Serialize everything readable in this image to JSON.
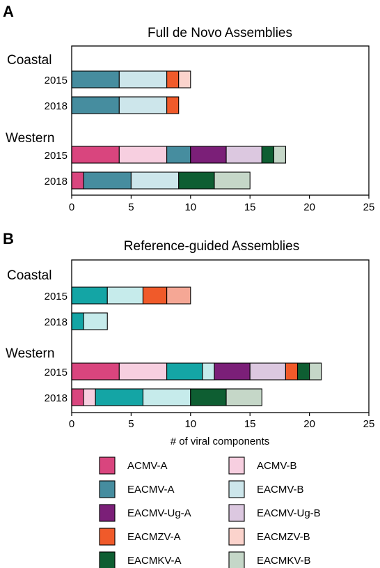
{
  "colors": {
    "ACMV-A": "#d9457e",
    "ACMV-B": "#f7cfe0",
    "EACMV-A": "#468d9f",
    "EACMV-B": "#cde6eb",
    "EACMV-Ug-A": "#7b1f78",
    "EACMV-Ug-B": "#dcc8e0",
    "EACMZV-A": "#f05a2a",
    "EACMZV-B": "#fbd3cc",
    "EACMKV-A": "#0e5e32",
    "EACMKV-B": "#c5d7c8",
    "ref-teal": "#14a5a5",
    "ref-lightcyan": "#c6ebeb",
    "ref-salmon": "#f5a795"
  },
  "legend": [
    [
      "ACMV-A",
      "ACMV-B"
    ],
    [
      "EACMV-A",
      "EACMV-B"
    ],
    [
      "EACMV-Ug-A",
      "EACMV-Ug-B"
    ],
    [
      "EACMZV-A",
      "EACMZV-B"
    ],
    [
      "EACMKV-A",
      "EACMKV-B"
    ]
  ],
  "chart_data": [
    {
      "type": "bar",
      "orientation": "horizontal",
      "stacked": true,
      "panel": "A",
      "title": "Full de Novo Assemblies",
      "xlabel": "",
      "xlim": [
        0,
        25
      ],
      "xticks": [
        0,
        5,
        10,
        15,
        20,
        25
      ],
      "groups": [
        {
          "label": "Coastal",
          "rows": [
            {
              "year": "2015",
              "segments": [
                {
                  "component": "EACMV-A",
                  "value": 4
                },
                {
                  "component": "EACMV-B",
                  "value": 4
                },
                {
                  "component": "EACMZV-A",
                  "value": 1
                },
                {
                  "component": "EACMZV-B",
                  "value": 1
                }
              ]
            },
            {
              "year": "2018",
              "segments": [
                {
                  "component": "EACMV-A",
                  "value": 4
                },
                {
                  "component": "EACMV-B",
                  "value": 4
                },
                {
                  "component": "EACMZV-A",
                  "value": 1
                }
              ]
            }
          ]
        },
        {
          "label": "Western",
          "rows": [
            {
              "year": "2015",
              "segments": [
                {
                  "component": "ACMV-A",
                  "value": 4
                },
                {
                  "component": "ACMV-B",
                  "value": 4
                },
                {
                  "component": "EACMV-A",
                  "value": 2
                },
                {
                  "component": "EACMV-Ug-A",
                  "value": 3
                },
                {
                  "component": "EACMV-Ug-B",
                  "value": 3
                },
                {
                  "component": "EACMKV-A",
                  "value": 1
                },
                {
                  "component": "EACMKV-B",
                  "value": 1
                }
              ]
            },
            {
              "year": "2018",
              "segments": [
                {
                  "component": "ACMV-A",
                  "value": 1
                },
                {
                  "component": "EACMV-A",
                  "value": 4
                },
                {
                  "component": "EACMV-B",
                  "value": 4
                },
                {
                  "component": "EACMKV-A",
                  "value": 3
                },
                {
                  "component": "EACMKV-B",
                  "value": 3
                }
              ]
            }
          ]
        }
      ]
    },
    {
      "type": "bar",
      "orientation": "horizontal",
      "stacked": true,
      "panel": "B",
      "title": "Reference-guided Assemblies",
      "xlabel": "# of viral components",
      "xlim": [
        0,
        25
      ],
      "xticks": [
        0,
        5,
        10,
        15,
        20,
        25
      ],
      "groups": [
        {
          "label": "Coastal",
          "rows": [
            {
              "year": "2015",
              "segments": [
                {
                  "component": "EACMV-A",
                  "value": 3,
                  "colorKey": "ref-teal"
                },
                {
                  "component": "EACMV-B",
                  "value": 3,
                  "colorKey": "ref-lightcyan"
                },
                {
                  "component": "EACMZV-A",
                  "value": 2
                },
                {
                  "component": "EACMZV-B",
                  "value": 2,
                  "colorKey": "ref-salmon"
                }
              ]
            },
            {
              "year": "2018",
              "segments": [
                {
                  "component": "EACMV-A",
                  "value": 1,
                  "colorKey": "ref-teal"
                },
                {
                  "component": "EACMV-B",
                  "value": 2,
                  "colorKey": "ref-lightcyan"
                }
              ]
            }
          ]
        },
        {
          "label": "Western",
          "rows": [
            {
              "year": "2015",
              "segments": [
                {
                  "component": "ACMV-A",
                  "value": 4
                },
                {
                  "component": "ACMV-B",
                  "value": 4
                },
                {
                  "component": "EACMV-A",
                  "value": 3,
                  "colorKey": "ref-teal"
                },
                {
                  "component": "EACMV-B",
                  "value": 1,
                  "colorKey": "ref-lightcyan"
                },
                {
                  "component": "EACMV-Ug-A",
                  "value": 3
                },
                {
                  "component": "EACMV-Ug-B",
                  "value": 3
                },
                {
                  "component": "EACMZV-A",
                  "value": 1
                },
                {
                  "component": "EACMKV-A",
                  "value": 1
                },
                {
                  "component": "EACMKV-B",
                  "value": 1
                }
              ]
            },
            {
              "year": "2018",
              "segments": [
                {
                  "component": "ACMV-A",
                  "value": 1
                },
                {
                  "component": "ACMV-B",
                  "value": 1
                },
                {
                  "component": "EACMV-A",
                  "value": 4,
                  "colorKey": "ref-teal"
                },
                {
                  "component": "EACMV-B",
                  "value": 4,
                  "colorKey": "ref-lightcyan"
                },
                {
                  "component": "EACMKV-A",
                  "value": 3
                },
                {
                  "component": "EACMKV-B",
                  "value": 3
                }
              ]
            }
          ]
        }
      ]
    }
  ]
}
